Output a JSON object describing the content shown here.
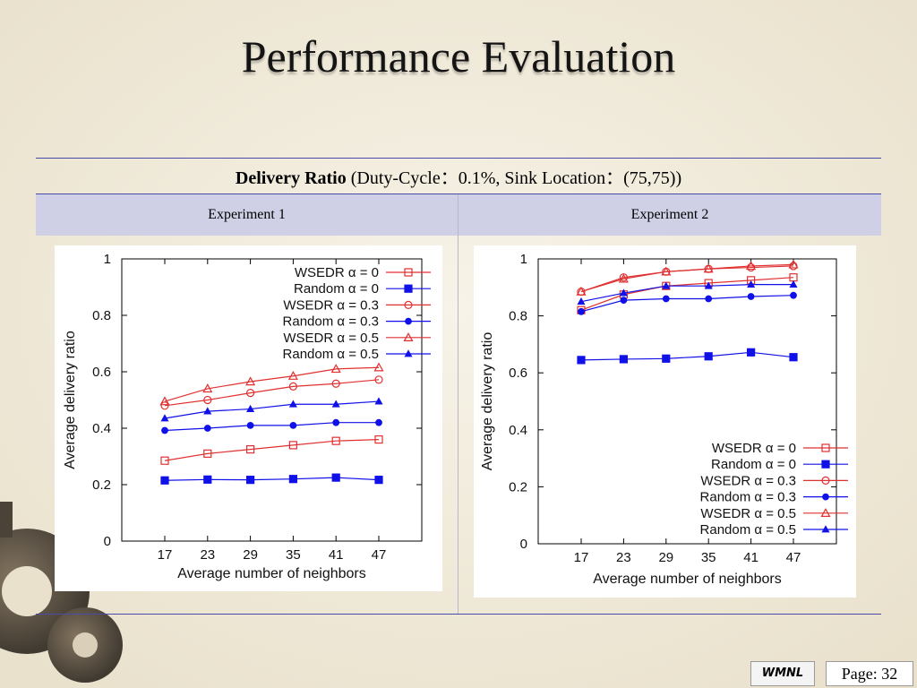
{
  "slide": {
    "title": "Performance Evaluation",
    "caption_bold": "Delivery Ratio",
    "caption_rest": " (Duty-Cycle：0.1%, Sink Location：(75,75))",
    "columns": [
      "Experiment 1",
      "Experiment 2"
    ],
    "footer_logo": "WMNL",
    "page_label": "Page:",
    "page_number": "32"
  },
  "chart_data": [
    {
      "type": "line",
      "xlabel": "Average number of neighbors",
      "ylabel": "Average delivery ratio",
      "x": [
        17,
        23,
        29,
        35,
        41,
        47
      ],
      "ylim": [
        0,
        1
      ],
      "yticks": [
        "0",
        "0.2",
        "0.4",
        "0.6",
        "0.8",
        "1"
      ],
      "legend_position": "top-right",
      "series": [
        {
          "name": "WSEDR α = 0",
          "color": "#e03030",
          "marker": "square-open",
          "values": [
            0.285,
            0.31,
            0.325,
            0.34,
            0.355,
            0.36
          ]
        },
        {
          "name": "Random α = 0",
          "color": "#1010e8",
          "marker": "square-filled",
          "values": [
            0.215,
            0.218,
            0.217,
            0.22,
            0.225,
            0.217
          ]
        },
        {
          "name": "WSEDR α = 0.3",
          "color": "#e03030",
          "marker": "circle-open",
          "values": [
            0.48,
            0.5,
            0.525,
            0.548,
            0.558,
            0.572
          ]
        },
        {
          "name": "Random α = 0.3",
          "color": "#1010e8",
          "marker": "circle-filled",
          "values": [
            0.392,
            0.4,
            0.41,
            0.41,
            0.42,
            0.42
          ]
        },
        {
          "name": "WSEDR α = 0.5",
          "color": "#e03030",
          "marker": "triangle-open",
          "values": [
            0.495,
            0.54,
            0.565,
            0.585,
            0.61,
            0.615
          ]
        },
        {
          "name": "Random α = 0.5",
          "color": "#1010e8",
          "marker": "triangle-filled",
          "values": [
            0.435,
            0.46,
            0.468,
            0.485,
            0.485,
            0.495
          ]
        }
      ]
    },
    {
      "type": "line",
      "xlabel": "Average number of neighbors",
      "ylabel": "Average delivery ratio",
      "x": [
        17,
        23,
        29,
        35,
        41,
        47
      ],
      "ylim": [
        0,
        1
      ],
      "yticks": [
        "0",
        "0.2",
        "0.4",
        "0.6",
        "0.8",
        "1"
      ],
      "legend_position": "bottom-right",
      "series": [
        {
          "name": "WSEDR α = 0",
          "color": "#e03030",
          "marker": "square-open",
          "values": [
            0.82,
            0.875,
            0.905,
            0.915,
            0.925,
            0.935
          ]
        },
        {
          "name": "Random α = 0",
          "color": "#1010e8",
          "marker": "square-filled",
          "values": [
            0.645,
            0.648,
            0.65,
            0.658,
            0.672,
            0.655
          ]
        },
        {
          "name": "WSEDR α = 0.3",
          "color": "#e03030",
          "marker": "circle-open",
          "values": [
            0.885,
            0.935,
            0.955,
            0.965,
            0.97,
            0.975
          ]
        },
        {
          "name": "Random α = 0.3",
          "color": "#1010e8",
          "marker": "circle-filled",
          "values": [
            0.815,
            0.855,
            0.86,
            0.86,
            0.868,
            0.872
          ]
        },
        {
          "name": "WSEDR α = 0.5",
          "color": "#e03030",
          "marker": "triangle-open",
          "values": [
            0.885,
            0.93,
            0.955,
            0.965,
            0.975,
            0.98
          ]
        },
        {
          "name": "Random α = 0.5",
          "color": "#1010e8",
          "marker": "triangle-filled",
          "values": [
            0.85,
            0.88,
            0.905,
            0.905,
            0.91,
            0.91
          ]
        }
      ]
    }
  ]
}
